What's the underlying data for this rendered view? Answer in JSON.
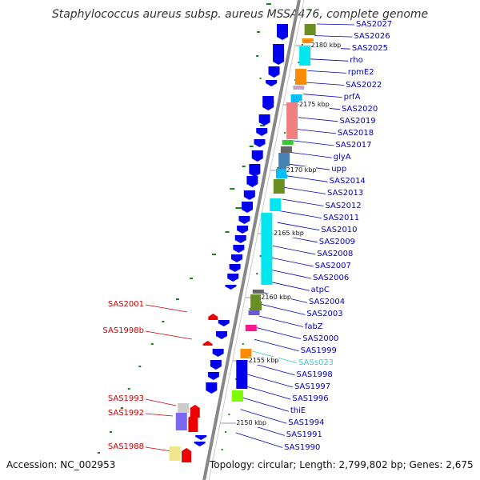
{
  "title": "Staphylococcus aureus subsp. aureus MSSA476, complete genome",
  "accession": "Accession: NC_002953",
  "stats": "Topology: circular; Length: 2,799,802 bp; Genes: 2,675",
  "colors": {
    "forward_gene": "#0000ee",
    "reverse_gene": "#ee0000",
    "backbone": "#888888",
    "right_label": "#0000bb",
    "left_label": "#cc0000",
    "rna_label": "#33cccc",
    "gc_tick": "#118811"
  },
  "kbp_ticks": [
    "2180 kbp",
    "2175 kbp",
    "2170 kbp",
    "2165 kbp",
    "2160 kbp",
    "2155 kbp",
    "2150 kbp"
  ],
  "right_labels": [
    "SAS2027",
    "SAS2026",
    "SAS2025",
    "rho",
    "rpmE2",
    "SAS2022",
    "prfA",
    "SAS2020",
    "SAS2019",
    "SAS2018",
    "SAS2017",
    "glyA",
    "upp",
    "SAS2014",
    "SAS2013",
    "SAS2012",
    "SAS2011",
    "SAS2010",
    "SAS2009",
    "SAS2008",
    "SAS2007",
    "SAS2006",
    "atpC",
    "SAS2004",
    "SAS2003",
    "fabZ",
    "SAS2000",
    "SAS1999",
    "SASs023",
    "SAS1998",
    "SAS1997",
    "SAS1996",
    "thiE",
    "SAS1994",
    "SAS1991",
    "SAS1990"
  ],
  "left_labels": [
    "SAS2001",
    "SAS1998b",
    "SAS1993",
    "SAS1992",
    "SAS1988"
  ]
}
